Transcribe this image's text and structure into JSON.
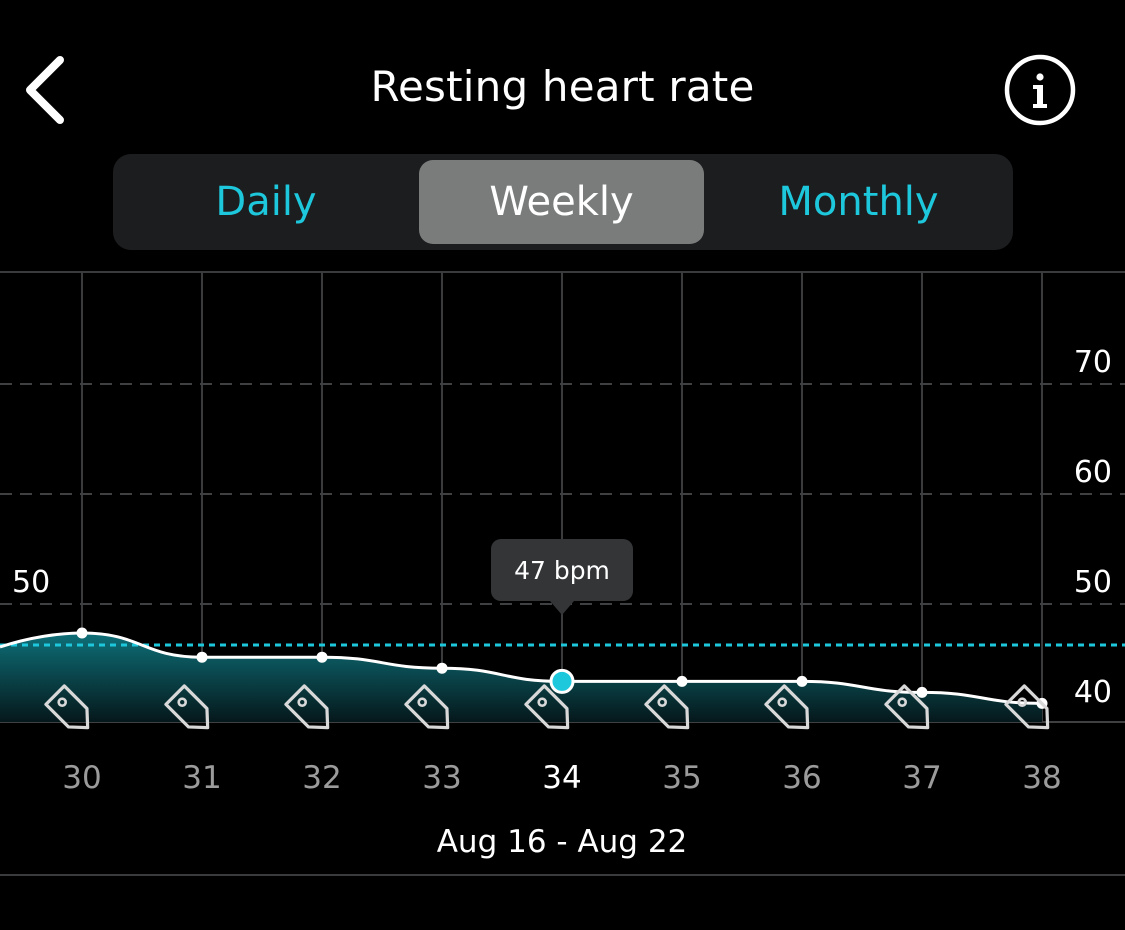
{
  "header": {
    "title": "Resting heart rate",
    "back_icon": "chevron-left-icon",
    "info_icon": "info-circle-icon"
  },
  "tabs": [
    {
      "label": "Daily",
      "active": false
    },
    {
      "label": "Weekly",
      "active": true
    },
    {
      "label": "Monthly",
      "active": false
    }
  ],
  "colors": {
    "accent": "#1ec8dc",
    "fill_top": "#0e6f78",
    "background": "#000000"
  },
  "chart_data": {
    "type": "area",
    "x": [
      "30",
      "31",
      "32",
      "33",
      "34",
      "35",
      "36",
      "37",
      "38"
    ],
    "y": [
      49,
      46.8,
      46.8,
      45.8,
      44.6,
      44.6,
      44.6,
      43.6,
      42.6
    ],
    "ylim": [
      37,
      78
    ],
    "yticks": [
      40,
      50,
      60,
      70
    ],
    "left_label": "50",
    "average_line": 47,
    "selected_index": 4,
    "tooltip": "47 bpm",
    "tag_icon": "tag-icon",
    "grid": true
  },
  "period_label": "Aug 16 - Aug 22"
}
